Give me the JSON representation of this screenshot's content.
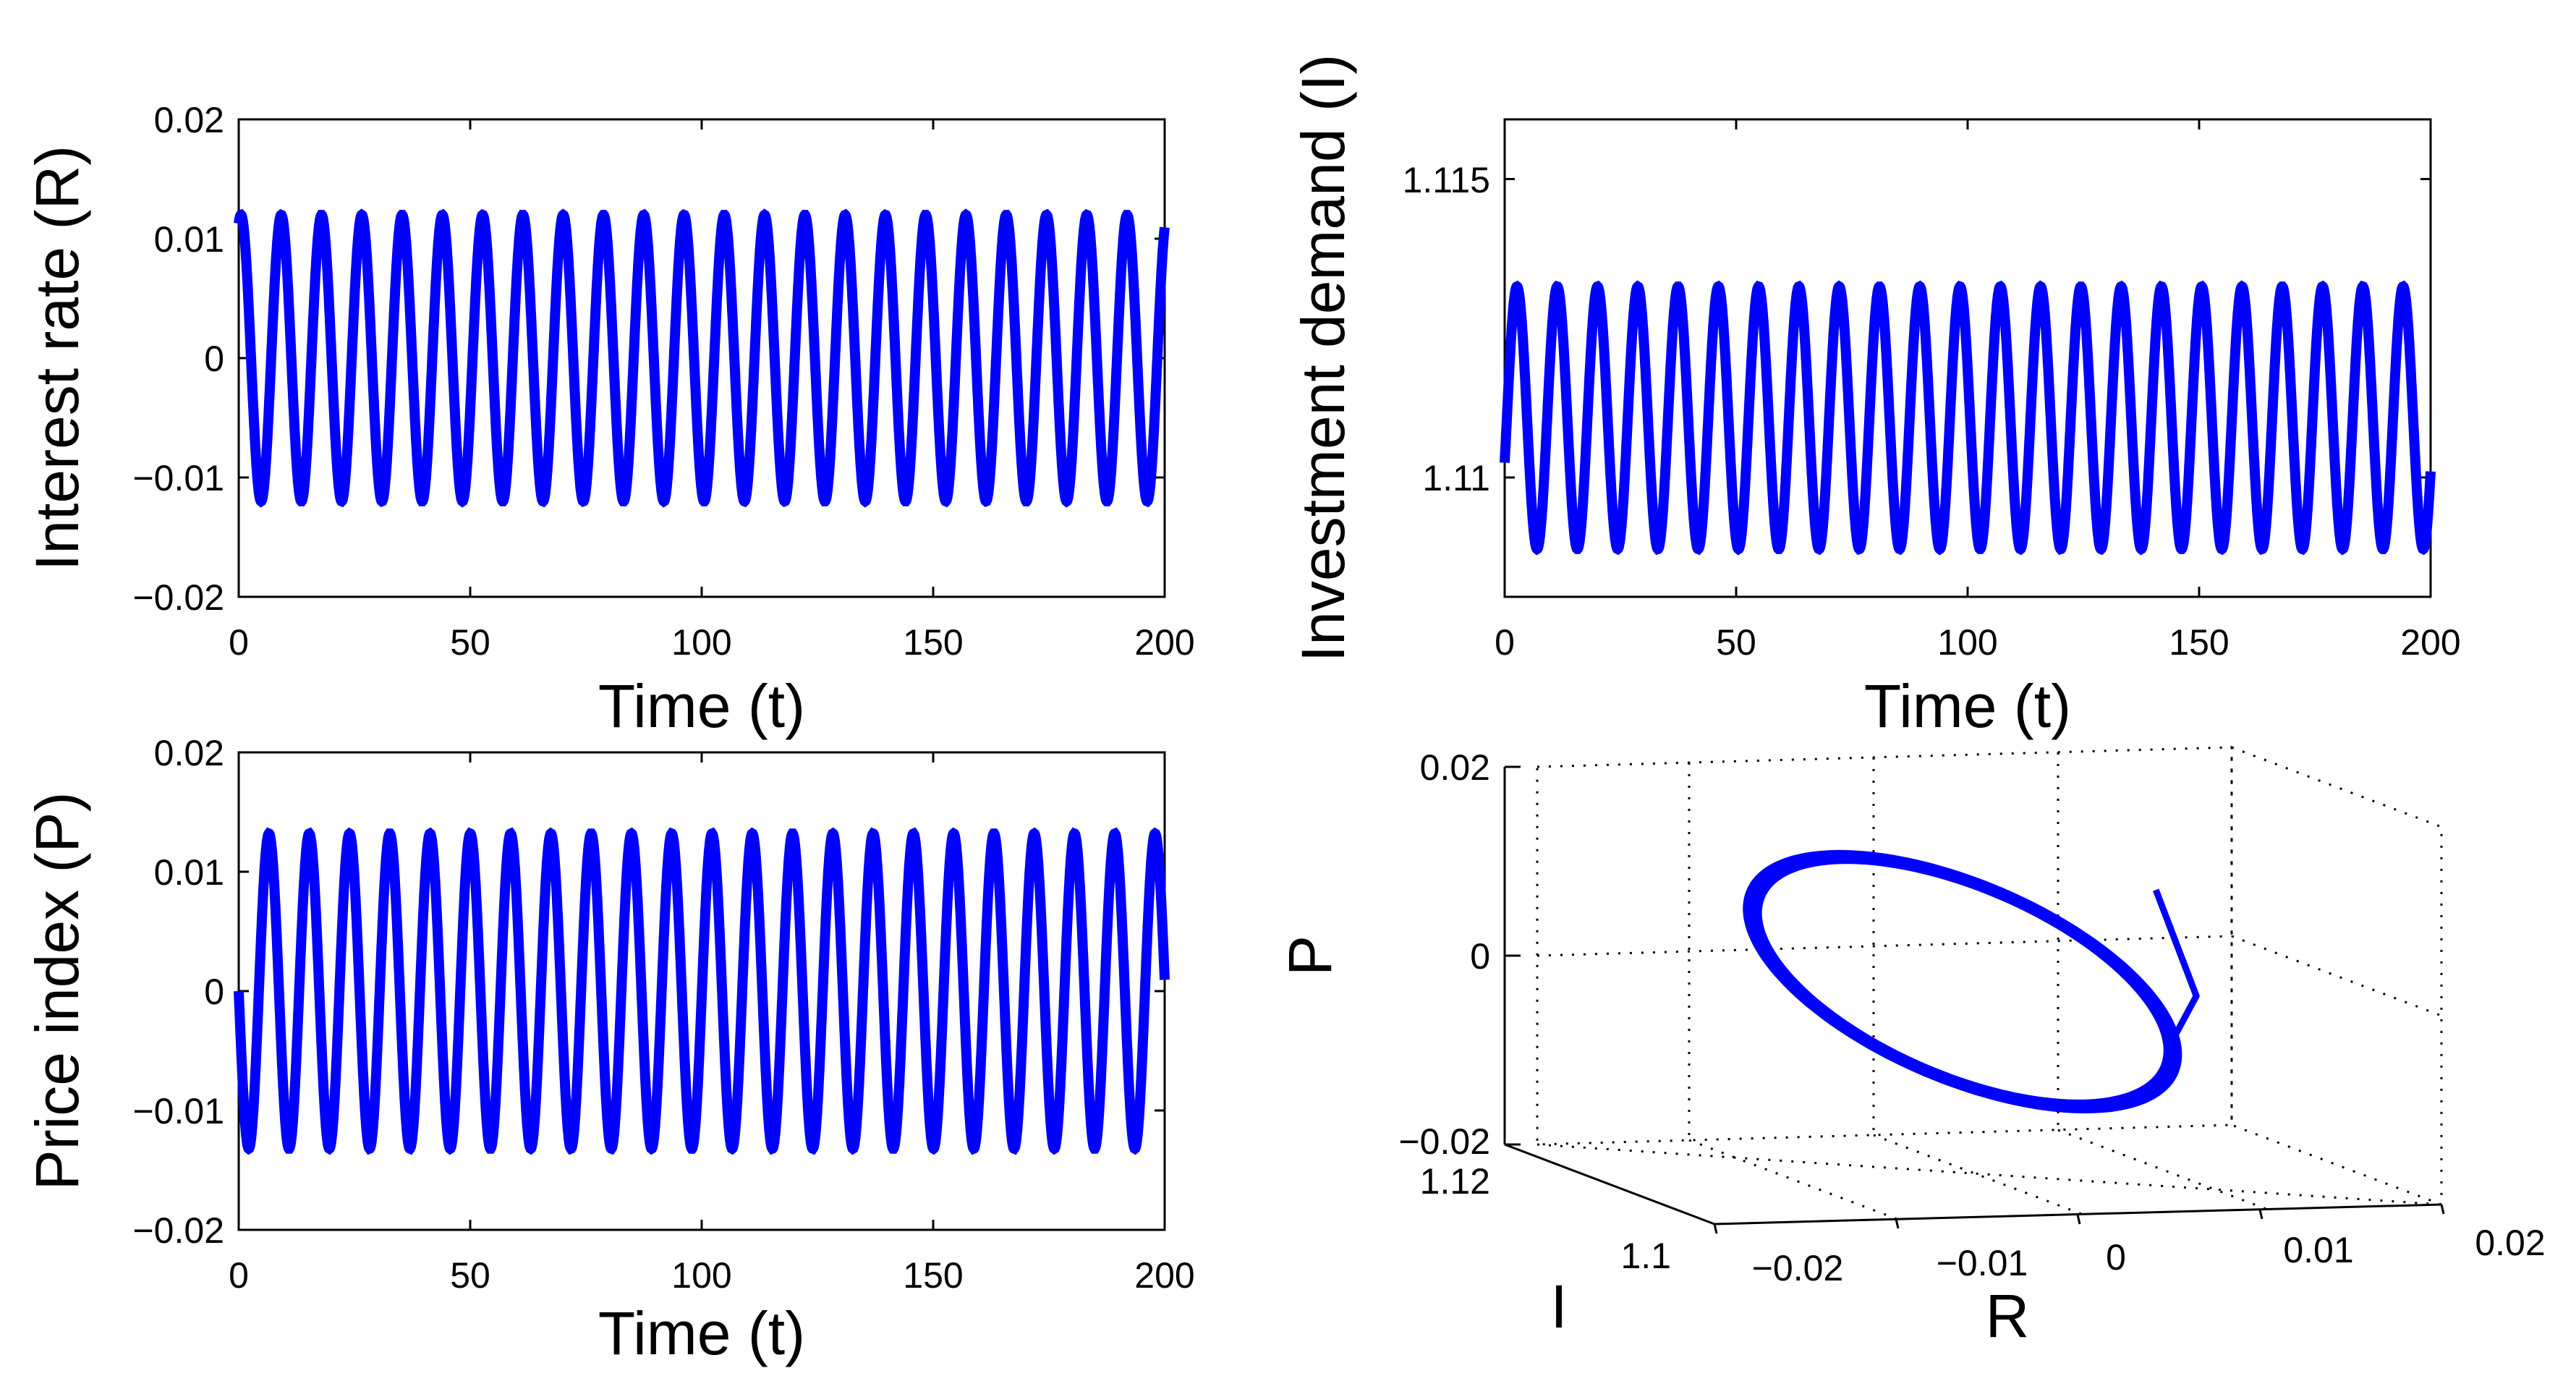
{
  "chart_data": [
    {
      "type": "line",
      "xlabel": "Time (t)",
      "ylabel": "Interest rate (R)",
      "xlim": [
        0,
        200
      ],
      "ylim": [
        -0.02,
        0.02
      ],
      "xticks": [
        "0",
        "50",
        "100",
        "150",
        "200"
      ],
      "yticks": [
        "0.02",
        "0.01",
        "0",
        "−0.01",
        "−0.02"
      ],
      "series": [
        {
          "color": "#0000ff",
          "function": "sine",
          "amplitude": 0.012,
          "offset": 0.0,
          "period": 8.7,
          "phase_deg": 70,
          "x_start": 0,
          "x_end": 200
        }
      ]
    },
    {
      "type": "line",
      "xlabel": "Time (t)",
      "ylabel": "Investment demand (I)",
      "xlim": [
        0,
        200
      ],
      "ylim": [
        1.108,
        1.116
      ],
      "xticks": [
        "0",
        "50",
        "100",
        "150",
        "200"
      ],
      "yticks": [
        "1.115",
        "1.11"
      ],
      "series": [
        {
          "color": "#0000ff",
          "function": "sine",
          "amplitude": 0.0022,
          "offset": 1.111,
          "period": 8.7,
          "phase_deg": -20,
          "x_start": 0,
          "x_end": 200
        }
      ]
    },
    {
      "type": "line",
      "xlabel": "Time (t)",
      "ylabel": "Price index (P)",
      "xlim": [
        0,
        200
      ],
      "ylim": [
        -0.02,
        0.02
      ],
      "xticks": [
        "0",
        "50",
        "100",
        "150",
        "200"
      ],
      "yticks": [
        "0.02",
        "0.01",
        "0",
        "−0.01",
        "−0.02"
      ],
      "series": [
        {
          "color": "#0000ff",
          "function": "sine",
          "amplitude": 0.0132,
          "offset": 0.0,
          "period": 8.7,
          "phase_deg": 180,
          "x_start": 0,
          "x_end": 200
        }
      ]
    },
    {
      "type": "line",
      "projection": "3d",
      "xlabel": "R",
      "ylabel": "I",
      "zlabel": "P",
      "xlim": [
        -0.02,
        0.02
      ],
      "ylim": [
        1.1,
        1.12
      ],
      "zlim": [
        -0.02,
        0.02
      ],
      "grid": true,
      "xticks": [
        "−0.02",
        "−0.01",
        "0",
        "0.01",
        "0.02"
      ],
      "yticks": [
        "1.12",
        "1.1"
      ],
      "zticks": [
        "0.02",
        "0",
        "−0.02"
      ],
      "series": [
        {
          "color": "#0000ff",
          "description": "closed orbit (limit cycle) with a short transient",
          "R_amplitude": 0.012,
          "I_center": 1.111,
          "I_amplitude": 0.0022,
          "P_amplitude": 0.013
        }
      ]
    }
  ]
}
